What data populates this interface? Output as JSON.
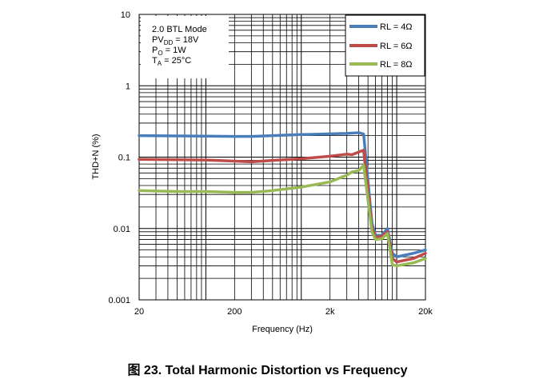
{
  "chart_data": {
    "type": "line",
    "x_scale": "log",
    "y_scale": "log",
    "xlim": [
      20,
      20000
    ],
    "ylim": [
      0.001,
      10
    ],
    "xlabel": "Frequency (Hz)",
    "ylabel": "THD+N (%)",
    "x_ticks": [
      {
        "value": 20,
        "label": "20"
      },
      {
        "value": 200,
        "label": "200"
      },
      {
        "value": 2000,
        "label": "2k"
      },
      {
        "value": 20000,
        "label": "20k"
      }
    ],
    "y_ticks": [
      {
        "value": 0.001,
        "label": "0.001"
      },
      {
        "value": 0.01,
        "label": "0.01"
      },
      {
        "value": 0.1,
        "label": "0.1"
      },
      {
        "value": 1,
        "label": "1"
      },
      {
        "value": 10,
        "label": "10"
      }
    ],
    "grid": true,
    "legend_position": "top-right",
    "conditions": {
      "line1": "2.0 BTL Mode",
      "line2_main": "PV",
      "line2_sub": "DD",
      "line2_rest": " = 18V",
      "line3_main": "P",
      "line3_sub": "O",
      "line3_rest": " = 1W",
      "line4_main": "T",
      "line4_sub": "A",
      "line4_rest": " = 25°C"
    },
    "series": [
      {
        "name": "RL = 4Ω",
        "color": "#4a7ebb",
        "points": [
          [
            20,
            0.2
          ],
          [
            50,
            0.198
          ],
          [
            100,
            0.197
          ],
          [
            200,
            0.195
          ],
          [
            300,
            0.195
          ],
          [
            500,
            0.2
          ],
          [
            1000,
            0.207
          ],
          [
            2000,
            0.212
          ],
          [
            3000,
            0.215
          ],
          [
            4000,
            0.22
          ],
          [
            4500,
            0.21
          ],
          [
            5500,
            0.012
          ],
          [
            6000,
            0.008
          ],
          [
            7000,
            0.008
          ],
          [
            8000,
            0.01
          ],
          [
            9000,
            0.0045
          ],
          [
            10000,
            0.004
          ],
          [
            15000,
            0.0045
          ],
          [
            20000,
            0.005
          ]
        ]
      },
      {
        "name": "RL = 6Ω",
        "color": "#be4b48",
        "points": [
          [
            20,
            0.093
          ],
          [
            50,
            0.092
          ],
          [
            100,
            0.091
          ],
          [
            200,
            0.088
          ],
          [
            300,
            0.086
          ],
          [
            500,
            0.09
          ],
          [
            1000,
            0.095
          ],
          [
            2000,
            0.103
          ],
          [
            3000,
            0.11
          ],
          [
            3400,
            0.108
          ],
          [
            4000,
            0.118
          ],
          [
            4500,
            0.125
          ],
          [
            5500,
            0.01
          ],
          [
            6000,
            0.0075
          ],
          [
            7000,
            0.0078
          ],
          [
            8000,
            0.009
          ],
          [
            9000,
            0.0038
          ],
          [
            10000,
            0.0034
          ],
          [
            15000,
            0.0038
          ],
          [
            20000,
            0.0045
          ]
        ]
      },
      {
        "name": "RL = 8Ω",
        "color": "#98b954",
        "points": [
          [
            20,
            0.034
          ],
          [
            50,
            0.033
          ],
          [
            100,
            0.033
          ],
          [
            200,
            0.032
          ],
          [
            300,
            0.032
          ],
          [
            500,
            0.034
          ],
          [
            1000,
            0.038
          ],
          [
            2000,
            0.045
          ],
          [
            3000,
            0.056
          ],
          [
            3400,
            0.062
          ],
          [
            4000,
            0.065
          ],
          [
            4500,
            0.077
          ],
          [
            5500,
            0.009
          ],
          [
            6000,
            0.007
          ],
          [
            7000,
            0.0072
          ],
          [
            8000,
            0.0085
          ],
          [
            9000,
            0.0031
          ],
          [
            10000,
            0.003
          ],
          [
            15000,
            0.0033
          ],
          [
            20000,
            0.0038
          ]
        ]
      }
    ],
    "caption": "图 23. Total Harmonic Distortion vs Frequency"
  }
}
